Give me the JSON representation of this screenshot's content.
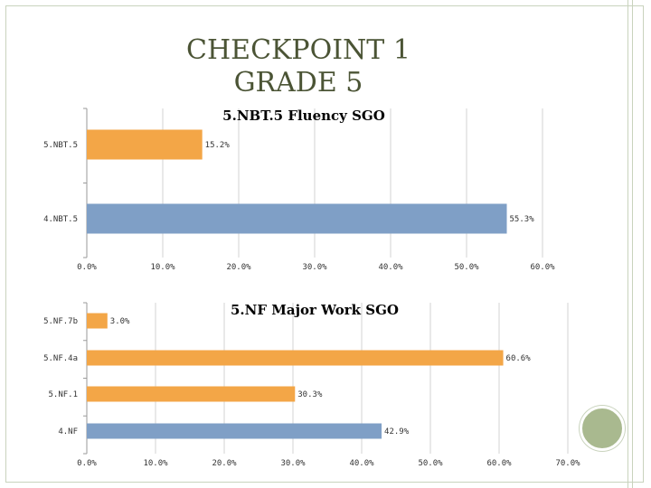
{
  "slide": {
    "title_line1": "CHECKPOINT 1",
    "title_line2": "GRADE 5"
  },
  "chart_data": [
    {
      "type": "bar",
      "orientation": "horizontal",
      "title": "5.NBT.5 Fluency SGO",
      "categories": [
        "5.NBT.5",
        "4.NBT.5"
      ],
      "values": [
        15.2,
        55.3
      ],
      "value_labels": [
        "15.2%",
        "55.3%"
      ],
      "colors": [
        "#f3a647",
        "#7f9fc6"
      ],
      "xlim": [
        0,
        60
      ],
      "xticks": [
        0,
        10,
        20,
        30,
        40,
        50,
        60
      ],
      "xtick_labels": [
        "0.0%",
        "10.0%",
        "20.0%",
        "30.0%",
        "40.0%",
        "50.0%",
        "60.0%"
      ],
      "grid": true
    },
    {
      "type": "bar",
      "orientation": "horizontal",
      "title": "5.NF Major Work SGO",
      "categories": [
        "5.NF.7b",
        "5.NF.4a",
        "5.NF.1",
        "4.NF"
      ],
      "values": [
        3.0,
        60.6,
        30.3,
        42.9
      ],
      "value_labels": [
        "3.0%",
        "60.6%",
        "30.3%",
        "42.9%"
      ],
      "colors": [
        "#f3a647",
        "#f3a647",
        "#f3a647",
        "#7f9fc6"
      ],
      "xlim": [
        0,
        70
      ],
      "xticks": [
        0,
        10,
        20,
        30,
        40,
        50,
        60,
        70
      ],
      "xtick_labels": [
        "0.0%",
        "10.0%",
        "20.0%",
        "30.0%",
        "40.0%",
        "50.0%",
        "60.0%",
        "70.0%"
      ],
      "grid": true
    }
  ]
}
